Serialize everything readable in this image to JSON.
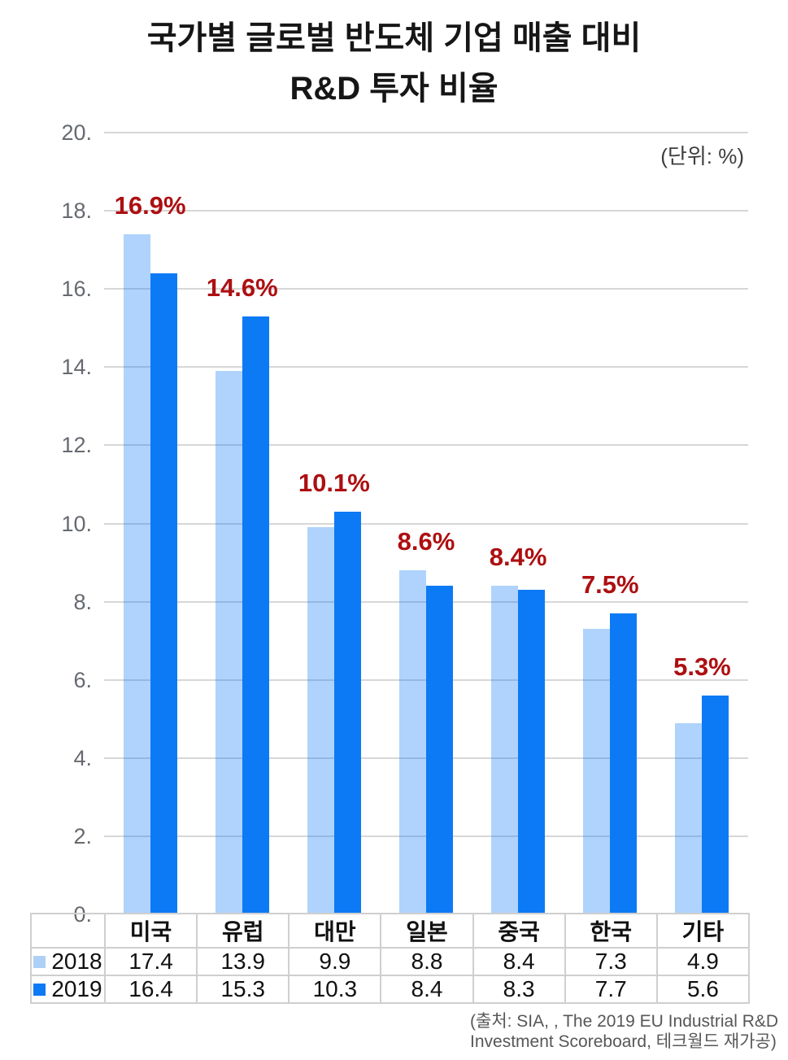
{
  "header": {
    "title_line1": "국가별 글로벌 반도체 기업 매출 대비",
    "title_line2": "R&D 투자 비율",
    "unit_label": "(단위: %)"
  },
  "source": {
    "line1": "(출처: SIA, , The 2019 EU Industrial R&D",
    "line2": "Investment Scoreboard, 테크월드 재가공)"
  },
  "colors": {
    "series_2018": "#aed0f7",
    "series_2018_rgba": "rgba(13,122,245,0.33)",
    "series_2019": "#0d7af5",
    "avg_label": "#ad0f11",
    "gridline": "#d7d7d7"
  },
  "chart_data": {
    "type": "bar",
    "title": "국가별 글로벌 반도체 기업 매출 대비 R&D 투자 비율",
    "unit_label": "(단위: %)",
    "categories": [
      "미국",
      "유럽",
      "대만",
      "일본",
      "중국",
      "한국",
      "기타"
    ],
    "series": [
      {
        "name": "2018",
        "color": "#aed0f7",
        "values": [
          17.4,
          13.9,
          9.9,
          8.8,
          8.4,
          7.3,
          4.9
        ]
      },
      {
        "name": "2019",
        "color": "#0d7af5",
        "values": [
          16.4,
          15.3,
          10.3,
          8.4,
          8.3,
          7.7,
          5.6
        ]
      }
    ],
    "avg_labels": [
      "16.9%",
      "14.6%",
      "10.1%",
      "8.6%",
      "8.4%",
      "7.5%",
      "5.3%"
    ],
    "ylim": [
      0,
      20
    ],
    "y_ticks": [
      "0.",
      "2.",
      "4.",
      "6.",
      "8.",
      "10.",
      "12.",
      "14.",
      "16.",
      "18.",
      "20."
    ],
    "grid": true,
    "legend_position": "table-left-column"
  }
}
